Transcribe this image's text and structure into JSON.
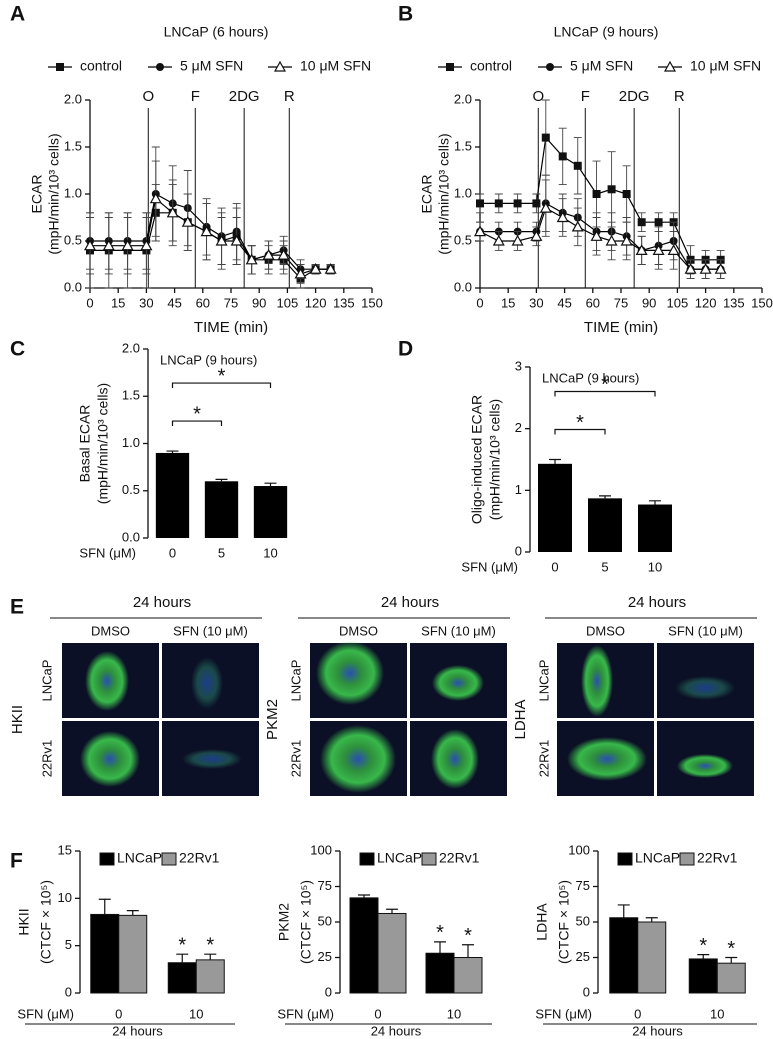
{
  "chart_data": [
    {
      "panel": "A",
      "type": "line",
      "title": "LNCaP (6 hours)",
      "xlabel": "TIME (min)",
      "ylabel": [
        "ECAR",
        "(mpH/min/10³ cells)"
      ],
      "x": [
        0,
        10,
        20,
        30,
        35,
        44,
        52,
        62,
        70,
        78,
        86,
        95,
        103,
        112,
        120,
        128
      ],
      "series": [
        {
          "name": "control",
          "marker": "square",
          "color": "#000000",
          "values": [
            0.4,
            0.4,
            0.4,
            0.4,
            0.8,
            0.8,
            0.7,
            0.6,
            0.5,
            0.55,
            0.3,
            0.3,
            0.3,
            0.1,
            0.2,
            0.2
          ],
          "errors": [
            0.4,
            0.4,
            0.4,
            0.4,
            0.3,
            0.3,
            0.3,
            0.3,
            0.3,
            0.3,
            0.15,
            0.15,
            0.15,
            0.1,
            0.05,
            0.05
          ]
        },
        {
          "name": "5 μM SFN",
          "marker": "circle",
          "color": "#000000",
          "values": [
            0.5,
            0.5,
            0.5,
            0.5,
            1.0,
            0.9,
            0.85,
            0.65,
            0.55,
            0.6,
            0.3,
            0.35,
            0.4,
            0.2,
            0.2,
            0.2
          ],
          "errors": [
            0.3,
            0.3,
            0.3,
            0.3,
            0.5,
            0.4,
            0.4,
            0.3,
            0.3,
            0.3,
            0.15,
            0.15,
            0.15,
            0.1,
            0.05,
            0.05
          ]
        },
        {
          "name": "10 μM SFN",
          "marker": "triangle",
          "color": "#000000",
          "values": [
            0.45,
            0.45,
            0.45,
            0.45,
            0.95,
            0.8,
            0.7,
            0.6,
            0.5,
            0.5,
            0.3,
            0.35,
            0.35,
            0.15,
            0.2,
            0.2
          ],
          "errors": [
            0.3,
            0.3,
            0.3,
            0.3,
            0.4,
            0.35,
            0.3,
            0.3,
            0.25,
            0.25,
            0.15,
            0.15,
            0.15,
            0.1,
            0.05,
            0.05
          ]
        }
      ],
      "xlim": [
        0,
        150
      ],
      "xticks": [
        0,
        15,
        30,
        45,
        60,
        75,
        90,
        105,
        120,
        135,
        150
      ],
      "ylim": [
        0,
        2
      ],
      "yticks": [
        {
          "value": 0,
          "label": "0.0"
        },
        {
          "value": 0.5,
          "label": "0.5"
        },
        {
          "value": 1,
          "label": "1.0"
        },
        {
          "value": 1.5,
          "label": "1.5"
        },
        {
          "value": 2,
          "label": "2.0"
        }
      ],
      "injections": [
        {
          "label": "O",
          "x": 31
        },
        {
          "label": "F",
          "x": 56
        },
        {
          "label": "2DG",
          "x": 82
        },
        {
          "label": "R",
          "x": 106
        }
      ]
    },
    {
      "panel": "B",
      "type": "line",
      "title": "LNCaP (9 hours)",
      "xlabel": "TIME (min)",
      "ylabel": [
        "ECAR",
        "(mpH/min/10³ cells)"
      ],
      "x": [
        0,
        10,
        20,
        30,
        35,
        44,
        52,
        62,
        70,
        78,
        86,
        95,
        103,
        112,
        120,
        128
      ],
      "series": [
        {
          "name": "control",
          "marker": "square",
          "color": "#000000",
          "values": [
            0.9,
            0.9,
            0.9,
            0.9,
            1.6,
            1.4,
            1.3,
            1.0,
            1.05,
            1.0,
            0.7,
            0.7,
            0.7,
            0.3,
            0.3,
            0.3
          ],
          "errors": [
            0.1,
            0.1,
            0.1,
            0.1,
            0.4,
            0.3,
            0.3,
            0.35,
            0.4,
            0.3,
            0.1,
            0.1,
            0.1,
            0.15,
            0.1,
            0.1
          ]
        },
        {
          "name": "5 μM SFN",
          "marker": "circle",
          "color": "#000000",
          "values": [
            0.6,
            0.6,
            0.6,
            0.6,
            0.9,
            0.8,
            0.75,
            0.6,
            0.6,
            0.55,
            0.4,
            0.45,
            0.5,
            0.2,
            0.2,
            0.2
          ],
          "errors": [
            0.1,
            0.1,
            0.1,
            0.1,
            0.3,
            0.2,
            0.2,
            0.2,
            0.2,
            0.2,
            0.15,
            0.2,
            0.2,
            0.1,
            0.1,
            0.1
          ]
        },
        {
          "name": "10 μM SFN",
          "marker": "triangle",
          "color": "#000000",
          "values": [
            0.6,
            0.5,
            0.5,
            0.55,
            0.85,
            0.75,
            0.65,
            0.55,
            0.5,
            0.5,
            0.4,
            0.4,
            0.4,
            0.2,
            0.2,
            0.2
          ],
          "errors": [
            0.1,
            0.1,
            0.1,
            0.1,
            0.3,
            0.2,
            0.2,
            0.2,
            0.2,
            0.2,
            0.15,
            0.2,
            0.2,
            0.1,
            0.1,
            0.1
          ]
        }
      ],
      "xlim": [
        0,
        150
      ],
      "xticks": [
        0,
        15,
        30,
        45,
        60,
        75,
        90,
        105,
        120,
        135,
        150
      ],
      "ylim": [
        0,
        2
      ],
      "yticks": [
        {
          "value": 0,
          "label": "0.0"
        },
        {
          "value": 0.5,
          "label": "0.5"
        },
        {
          "value": 1,
          "label": "1.0"
        },
        {
          "value": 1.5,
          "label": "1.5"
        },
        {
          "value": 2,
          "label": "2.0"
        }
      ],
      "injections": [
        {
          "label": "O",
          "x": 31
        },
        {
          "label": "F",
          "x": 56
        },
        {
          "label": "2DG",
          "x": 82
        },
        {
          "label": "R",
          "x": 106
        }
      ]
    },
    {
      "panel": "C",
      "type": "bar",
      "annotation": "LNCaP (9 hours)",
      "ylabel": [
        "Basal ECAR",
        "(mpH/min/10³ cells)"
      ],
      "xlabel": "SFN (μM)",
      "categories": [
        "0",
        "5",
        "10"
      ],
      "values": [
        0.9,
        0.6,
        0.55
      ],
      "errors": [
        0.02,
        0.02,
        0.03
      ],
      "color": "#000000",
      "ylim": [
        0,
        2
      ],
      "yticks": [
        {
          "value": 0,
          "label": "0.0"
        },
        {
          "value": 0.5,
          "label": "0.5"
        },
        {
          "value": 1,
          "label": "1.0"
        },
        {
          "value": 1.5,
          "label": "1.5"
        },
        {
          "value": 2,
          "label": "2.0"
        }
      ],
      "significance": [
        {
          "from": "0",
          "to": "10",
          "label": "*"
        },
        {
          "from": "0",
          "to": "5",
          "label": "*"
        }
      ]
    },
    {
      "panel": "D",
      "type": "bar",
      "annotation": "LNCaP (9 hours)",
      "ylabel": [
        "Oligo-induced ECAR",
        "(mpH/min/10³ cells)"
      ],
      "xlabel": "SFN (μM)",
      "categories": [
        "0",
        "5",
        "10"
      ],
      "values": [
        1.43,
        0.87,
        0.77
      ],
      "errors": [
        0.07,
        0.04,
        0.06
      ],
      "color": "#000000",
      "ylim": [
        0,
        3
      ],
      "yticks": [
        0,
        1,
        2,
        3
      ],
      "significance": [
        {
          "from": "0",
          "to": "10",
          "label": "*"
        },
        {
          "from": "0",
          "to": "5",
          "label": "*"
        }
      ]
    },
    {
      "panel": "F",
      "type": "grouped_bar",
      "ylabel": [
        "HKII",
        "(CTCF × 10⁵)"
      ],
      "xlabel": "SFN (μM)",
      "categories": [
        "0",
        "10"
      ],
      "group_label": "24 hours",
      "series": [
        {
          "name": "LNCaP",
          "color": "#000000",
          "values": [
            8.3,
            3.2
          ],
          "errors": [
            1.6,
            0.9
          ],
          "significance": [
            null,
            "*"
          ]
        },
        {
          "name": "22Rv1",
          "color": "#999999",
          "values": [
            8.2,
            3.5
          ],
          "errors": [
            0.5,
            0.6
          ],
          "significance": [
            null,
            "*"
          ]
        }
      ],
      "ylim": [
        0,
        15
      ],
      "yticks": [
        0,
        5,
        10,
        15
      ]
    },
    {
      "type": "grouped_bar",
      "ylabel": [
        "PKM2",
        "(CTCF × 10⁵)"
      ],
      "xlabel": "SFN (μM)",
      "categories": [
        "0",
        "10"
      ],
      "group_label": "24 hours",
      "series": [
        {
          "name": "LNCaP",
          "color": "#000000",
          "values": [
            67,
            28
          ],
          "errors": [
            2,
            8
          ],
          "significance": [
            null,
            "*"
          ]
        },
        {
          "name": "22Rv1",
          "color": "#999999",
          "values": [
            56,
            25
          ],
          "errors": [
            3,
            9
          ],
          "significance": [
            null,
            "*"
          ]
        }
      ],
      "ylim": [
        0,
        100
      ],
      "yticks": [
        0,
        25,
        50,
        75,
        100
      ]
    },
    {
      "type": "grouped_bar",
      "ylabel": [
        "LDHA",
        "(CTCF × 10⁵)"
      ],
      "xlabel": "SFN (μM)",
      "categories": [
        "0",
        "10"
      ],
      "group_label": "24 hours",
      "series": [
        {
          "name": "LNCaP",
          "color": "#000000",
          "values": [
            53,
            24
          ],
          "errors": [
            9,
            3
          ],
          "significance": [
            null,
            "*"
          ]
        },
        {
          "name": "22Rv1",
          "color": "#999999",
          "values": [
            50,
            21
          ],
          "errors": [
            3,
            4
          ],
          "significance": [
            null,
            "*"
          ]
        }
      ],
      "ylim": [
        0,
        100
      ],
      "yticks": [
        0,
        25,
        50,
        75,
        100
      ]
    }
  ],
  "micrographs": {
    "panel": "E",
    "groups": [
      {
        "time": "24 hours",
        "protein": "HKII",
        "columns": [
          "DMSO",
          "SFN (10 μM)"
        ],
        "rows": [
          "LNCaP",
          "22Rv1"
        ]
      },
      {
        "time": "24 hours",
        "protein": "PKM2",
        "columns": [
          "DMSO",
          "SFN (10 μM)"
        ],
        "rows": [
          "LNCaP",
          "22Rv1"
        ]
      },
      {
        "time": "24 hours",
        "protein": "LDHA",
        "columns": [
          "DMSO",
          "SFN (10 μM)"
        ],
        "rows": [
          "LNCaP",
          "22Rv1"
        ]
      }
    ]
  }
}
